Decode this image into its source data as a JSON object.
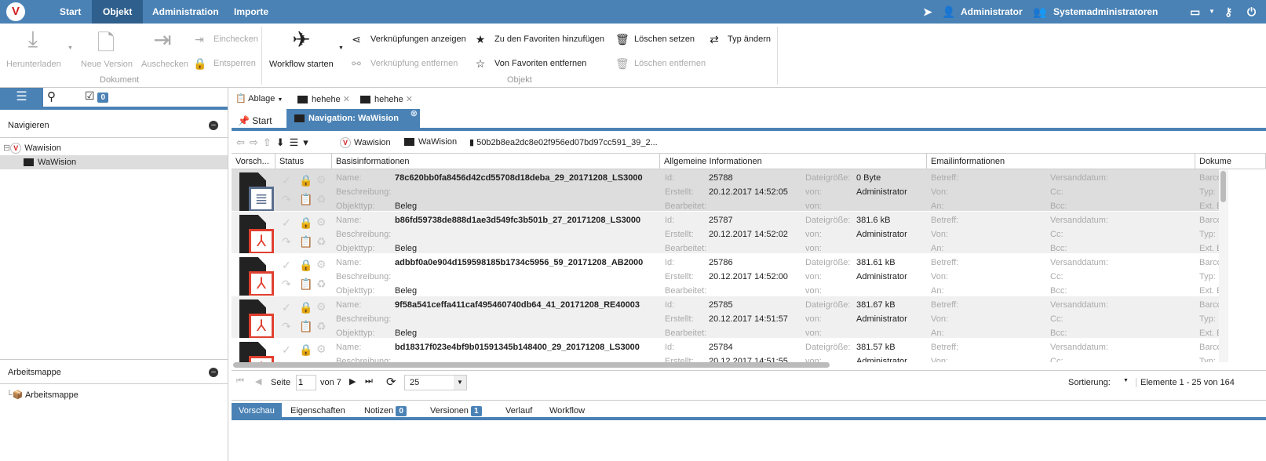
{
  "topnav": {
    "items": [
      "Start",
      "Objekt",
      "Administration",
      "Importe"
    ],
    "user": "Administrator",
    "group": "Systemadministratoren"
  },
  "ribbon": {
    "download": "Herunterladen",
    "new_version": "Neue Version",
    "checkout": "Auschecken",
    "checkin": "Einchecken",
    "unlock": "Entsperren",
    "dokument_group": "Dokument",
    "workflow": "Workflow starten",
    "show_links": "Verknüpfungen anzeigen",
    "remove_link": "Verknüpfung entfernen",
    "add_fav": "Zu den Favoriten hinzufügen",
    "remove_fav": "Von Favoriten entfernen",
    "set_delete": "Löschen setzen",
    "remove_delete": "Löschen entfernen",
    "change_type": "Typ ändern",
    "objekt_group": "Objekt"
  },
  "left": {
    "check_count": "0",
    "navigate": "Navigieren",
    "tree_root": "Wawision",
    "tree_child": "WaWision",
    "workbook": "Arbeitsmappe",
    "workbook_item": "Arbeitsmappe"
  },
  "clipboard": {
    "label": "Ablage",
    "items": [
      "hehehe",
      "hehehe"
    ]
  },
  "tabs": {
    "start": "Start",
    "nav": "Navigation: WaWision"
  },
  "breadcrumb": [
    "Wawision",
    "WaWision",
    "50b2b8ea2dc8e02f956ed07bd97cc591_39_2..."
  ],
  "columns": [
    "Vorsch...",
    "Status",
    "Basisinformationen",
    "Allgemeine Informationen",
    "Emailinformationen",
    "Dokume"
  ],
  "labels": {
    "name": "Name:",
    "desc": "Beschreibung:",
    "type": "Objekttyp:",
    "id": "Id:",
    "created": "Erstellt:",
    "edited": "Bearbeitet:",
    "size": "Dateigröße:",
    "von": "von:",
    "betreff": "Betreff:",
    "von2": "Von:",
    "an": "An:",
    "versand": "Versanddatum:",
    "cc": "Cc:",
    "bcc": "Bcc:",
    "barcode": "Barco",
    "typ": "Typ:",
    "ext": "Ext. E"
  },
  "rows": [
    {
      "name": "78c620bb0fa8456d42cd55708d18deba_29_20171208_LS3000",
      "type": "Beleg",
      "id": "25788",
      "created": "20.12.2017 14:52:05",
      "size": "0 Byte",
      "by": "Administrator",
      "icon": "text-document-icon"
    },
    {
      "name": "b86fd59738de888d1ae3d549fc3b501b_27_20171208_LS3000",
      "type": "Beleg",
      "id": "25787",
      "created": "20.12.2017 14:52:02",
      "size": "381.6 kB",
      "by": "Administrator",
      "icon": "pdf-icon"
    },
    {
      "name": "adbbf0a0e904d159598185b1734c5956_59_20171208_AB2000",
      "type": "Beleg",
      "id": "25786",
      "created": "20.12.2017 14:52:00",
      "size": "381.61 kB",
      "by": "Administrator",
      "icon": "pdf-icon"
    },
    {
      "name": "9f58a541ceffa411caf495460740db64_41_20171208_RE40003",
      "type": "Beleg",
      "id": "25785",
      "created": "20.12.2017 14:51:57",
      "size": "381.67 kB",
      "by": "Administrator",
      "icon": "pdf-icon"
    },
    {
      "name": "bd18317f023e4bf9b01591345b148400_29_20171208_LS3000",
      "type": "",
      "id": "25784",
      "created": "20.12.2017 14:51:55",
      "size": "381.57 kB",
      "by": "Administrator",
      "icon": "pdf-icon"
    }
  ],
  "pager": {
    "page_label": "Seite",
    "page": "1",
    "of": "von 7",
    "page_size": "25",
    "sort": "Sortierung:",
    "range": "Elemente 1 - 25 von 164"
  },
  "bottom_tabs": [
    {
      "label": "Vorschau"
    },
    {
      "label": "Eigenschaften"
    },
    {
      "label": "Notizen",
      "count": "0"
    },
    {
      "label": "Versionen",
      "count": "1"
    },
    {
      "label": "Verlauf"
    },
    {
      "label": "Workflow"
    }
  ],
  "colors": {
    "accent": "#4a82b5",
    "pdf": "#e04030"
  }
}
